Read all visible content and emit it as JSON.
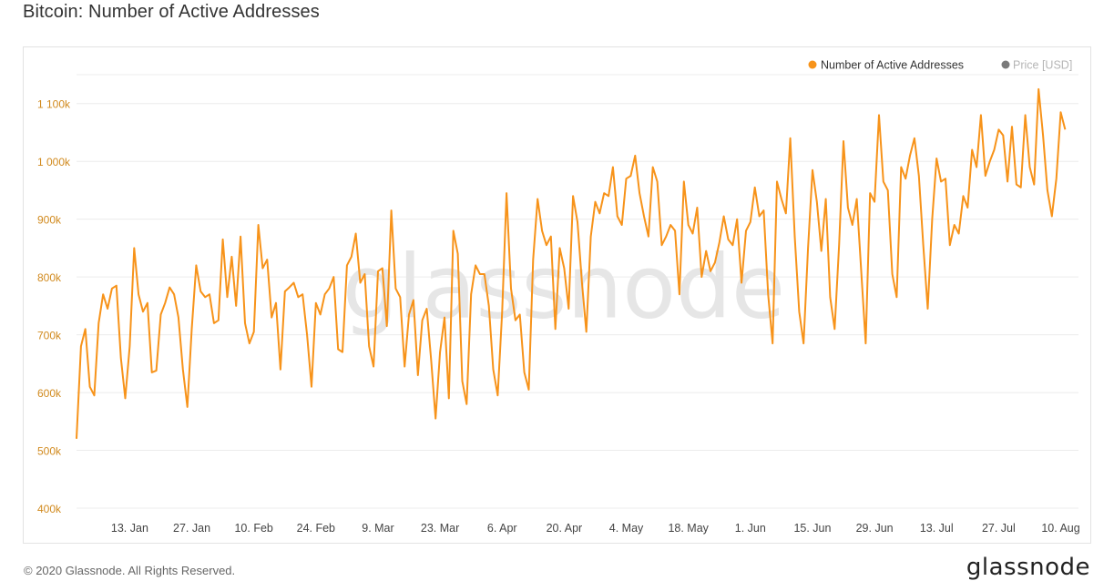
{
  "header": {
    "title": "Bitcoin: Number of Active Addresses"
  },
  "footer": {
    "copyright": "© 2020 Glassnode. All Rights Reserved.",
    "logo": "glassnode"
  },
  "watermark": "glassnode",
  "colors": {
    "series": "#f7931a",
    "price": "#7a7a7a",
    "grid": "#ececec",
    "tick": "#d18a1e"
  },
  "chart_data": {
    "type": "line",
    "title": "Bitcoin: Number of Active Addresses",
    "xlabel": "",
    "ylabel": "",
    "ylim": [
      400000,
      1150000
    ],
    "yticks": [
      400000,
      500000,
      600000,
      700000,
      800000,
      900000,
      1000000,
      1100000
    ],
    "ytick_labels": [
      "400k",
      "500k",
      "600k",
      "700k",
      "800k",
      "900k",
      "1 000k",
      "1 100k"
    ],
    "xlim": [
      "2020-01-01",
      "2020-08-14"
    ],
    "xticks": [
      "2020-01-13",
      "2020-01-27",
      "2020-02-10",
      "2020-02-24",
      "2020-03-09",
      "2020-03-23",
      "2020-04-06",
      "2020-04-20",
      "2020-05-04",
      "2020-05-18",
      "2020-06-01",
      "2020-06-15",
      "2020-06-29",
      "2020-07-13",
      "2020-07-27",
      "2020-08-10"
    ],
    "xtick_labels": [
      "13. Jan",
      "27. Jan",
      "10. Feb",
      "24. Feb",
      "9. Mar",
      "23. Mar",
      "6. Apr",
      "20. Apr",
      "4. May",
      "18. May",
      "1. Jun",
      "15. Jun",
      "29. Jun",
      "13. Jul",
      "27. Jul",
      "10. Aug"
    ],
    "grid": true,
    "legend_position": "top-right",
    "legend": [
      {
        "name": "Number of Active Addresses",
        "color": "#f7931a",
        "active": true
      },
      {
        "name": "Price [USD]",
        "color": "#7a7a7a",
        "active": false
      }
    ],
    "series": [
      {
        "name": "Number of Active Addresses",
        "start": "2020-01-01",
        "values": [
          520000,
          680000,
          710000,
          610000,
          595000,
          720000,
          770000,
          745000,
          780000,
          785000,
          660000,
          590000,
          680000,
          850000,
          770000,
          740000,
          755000,
          635000,
          638000,
          735000,
          755000,
          782000,
          770000,
          730000,
          640000,
          575000,
          710000,
          820000,
          775000,
          765000,
          770000,
          720000,
          725000,
          865000,
          765000,
          835000,
          750000,
          870000,
          720000,
          685000,
          705000,
          890000,
          815000,
          830000,
          730000,
          755000,
          640000,
          775000,
          782000,
          790000,
          765000,
          770000,
          700000,
          610000,
          755000,
          735000,
          770000,
          780000,
          800000,
          675000,
          670000,
          820000,
          835000,
          875000,
          790000,
          805000,
          680000,
          645000,
          810000,
          815000,
          715000,
          915000,
          780000,
          765000,
          645000,
          735000,
          760000,
          630000,
          725000,
          745000,
          655000,
          555000,
          670000,
          730000,
          590000,
          880000,
          840000,
          620000,
          580000,
          770000,
          820000,
          805000,
          805000,
          750000,
          640000,
          595000,
          740000,
          945000,
          780000,
          725000,
          735000,
          635000,
          605000,
          830000,
          935000,
          880000,
          855000,
          870000,
          710000,
          850000,
          815000,
          745000,
          940000,
          895000,
          790000,
          705000,
          870000,
          930000,
          910000,
          945000,
          940000,
          990000,
          905000,
          890000,
          970000,
          975000,
          1010000,
          945000,
          905000,
          870000,
          990000,
          965000,
          855000,
          870000,
          890000,
          880000,
          770000,
          965000,
          890000,
          875000,
          920000,
          800000,
          845000,
          810000,
          825000,
          860000,
          905000,
          865000,
          855000,
          900000,
          790000,
          880000,
          895000,
          955000,
          905000,
          915000,
          770000,
          685000,
          965000,
          935000,
          910000,
          1040000,
          870000,
          740000,
          685000,
          850000,
          985000,
          930000,
          845000,
          935000,
          765000,
          710000,
          855000,
          1035000,
          920000,
          890000,
          935000,
          810000,
          685000,
          945000,
          930000,
          1080000,
          965000,
          950000,
          805000,
          765000,
          990000,
          970000,
          1010000,
          1040000,
          975000,
          855000,
          745000,
          900000,
          1005000,
          965000,
          970000,
          855000,
          890000,
          875000,
          940000,
          920000,
          1020000,
          990000,
          1080000,
          975000,
          1000000,
          1020000,
          1055000,
          1045000,
          965000,
          1060000,
          960000,
          955000,
          1080000,
          990000,
          960000,
          1125000,
          1045000,
          950000,
          905000,
          970000,
          1085000,
          1055000
        ]
      }
    ]
  }
}
